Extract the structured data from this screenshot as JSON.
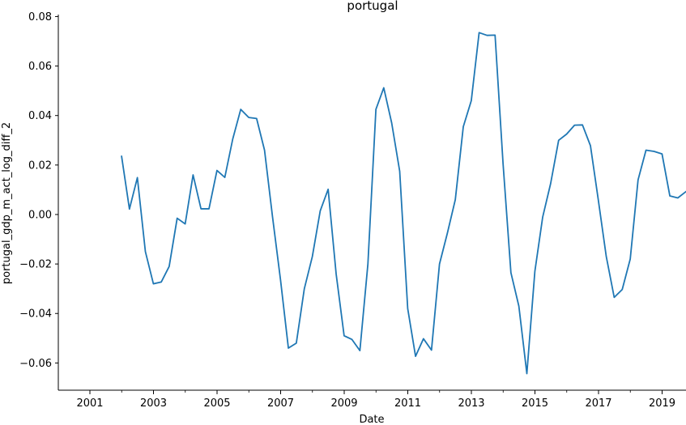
{
  "chart_data": {
    "type": "line",
    "title": "portugal",
    "xlabel": "Date",
    "ylabel": "portugal_gdp_m_act_log_diff_2",
    "x_tick_labels": [
      "2001",
      "2003",
      "2005",
      "2007",
      "2009",
      "2011",
      "2013",
      "2015",
      "2017",
      "2019"
    ],
    "y_tick_labels": [
      "−0.06",
      "−0.04",
      "−0.02",
      "0.00",
      "0.02",
      "0.04",
      "0.06",
      "0.08"
    ],
    "ylim": [
      -0.071,
      0.0808
    ],
    "grid": false,
    "legend": "none",
    "color": "#1f77b4",
    "series": [
      {
        "x": [
          "2001-12-31",
          "2002-03-31",
          "2002-06-30",
          "2002-09-30",
          "2002-12-31",
          "2003-03-31",
          "2003-06-30",
          "2003-09-30",
          "2003-12-31",
          "2004-03-31",
          "2004-06-30",
          "2004-09-30",
          "2004-12-31",
          "2005-03-31",
          "2005-06-30",
          "2005-09-30",
          "2005-12-31",
          "2006-03-31",
          "2006-06-30",
          "2006-09-30",
          "2006-12-31",
          "2007-03-31",
          "2007-06-30",
          "2007-09-30",
          "2007-12-31",
          "2008-03-31",
          "2008-06-30",
          "2008-09-30",
          "2008-12-31",
          "2009-03-31",
          "2009-06-30",
          "2009-09-30",
          "2009-12-31",
          "2010-03-31",
          "2010-06-30",
          "2010-09-30",
          "2010-12-31",
          "2011-03-31",
          "2011-06-30",
          "2011-09-30",
          "2011-12-31",
          "2012-03-31",
          "2012-06-30",
          "2012-09-30",
          "2012-12-31",
          "2013-03-31",
          "2013-06-30",
          "2013-09-30",
          "2013-12-31",
          "2014-03-31",
          "2014-06-30",
          "2014-09-30",
          "2014-12-31",
          "2015-03-31",
          "2015-06-30",
          "2015-09-30",
          "2015-12-31",
          "2016-03-31",
          "2016-06-30",
          "2016-09-30",
          "2016-12-31",
          "2017-03-31",
          "2017-06-30",
          "2017-09-30",
          "2017-12-31",
          "2018-03-31",
          "2018-06-30",
          "2018-09-30",
          "2018-12-31",
          "2019-03-31",
          "2019-06-30",
          "2019-09-30"
        ],
        "y": [
          0.0235,
          0.0022,
          0.0149,
          -0.015,
          -0.028,
          -0.0273,
          -0.021,
          -0.0015,
          -0.0038,
          0.016,
          0.0023,
          0.0023,
          0.0178,
          0.015,
          0.0305,
          0.0425,
          0.0392,
          0.0388,
          0.026,
          -0.001,
          -0.0265,
          -0.054,
          -0.052,
          -0.03,
          -0.017,
          0.0015,
          0.0102,
          -0.024,
          -0.049,
          -0.0505,
          -0.055,
          -0.02,
          0.0425,
          0.0512,
          0.037,
          0.0175,
          -0.038,
          -0.0573,
          -0.0502,
          -0.0548,
          -0.02,
          -0.0075,
          0.006,
          0.0355,
          0.046,
          0.0735,
          0.0724,
          0.0725,
          0.0205,
          -0.0235,
          -0.037,
          -0.0643,
          -0.023,
          -0.001,
          0.0125,
          0.03,
          0.0325,
          0.0361,
          0.0362,
          0.0278,
          0.0055,
          -0.017,
          -0.0335,
          -0.0303,
          -0.018,
          0.014,
          0.026,
          0.0255,
          0.0245,
          0.0075,
          0.0067,
          0.0092
        ]
      }
    ]
  }
}
